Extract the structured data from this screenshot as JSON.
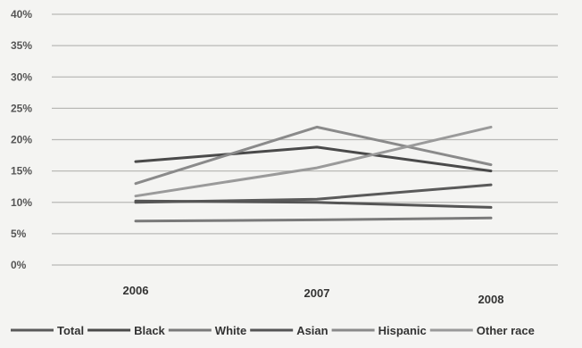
{
  "chart_data": {
    "type": "line",
    "categories": [
      "2006",
      "2007",
      "2008"
    ],
    "y_ticks": [
      "0%",
      "5%",
      "10%",
      "15%",
      "20%",
      "25%",
      "30%",
      "35%",
      "40%"
    ],
    "ylim": [
      0,
      40
    ],
    "grid": true,
    "legend_position": "bottom",
    "series": [
      {
        "name": "Total",
        "values": [
          10.0,
          10.5,
          12.8
        ],
        "color": "#5a5a5a"
      },
      {
        "name": "Black",
        "values": [
          16.5,
          18.8,
          15.0
        ],
        "color": "#4a4a4a"
      },
      {
        "name": "White",
        "values": [
          7.0,
          7.2,
          7.5
        ],
        "color": "#7a7a7a"
      },
      {
        "name": "Asian",
        "values": [
          10.2,
          10.0,
          9.2
        ],
        "color": "#555555"
      },
      {
        "name": "Hispanic",
        "values": [
          13.0,
          22.0,
          16.0
        ],
        "color": "#8a8a8a"
      },
      {
        "name": "Other race",
        "values": [
          11.0,
          15.5,
          22.0
        ],
        "color": "#9a9a9a"
      }
    ]
  }
}
